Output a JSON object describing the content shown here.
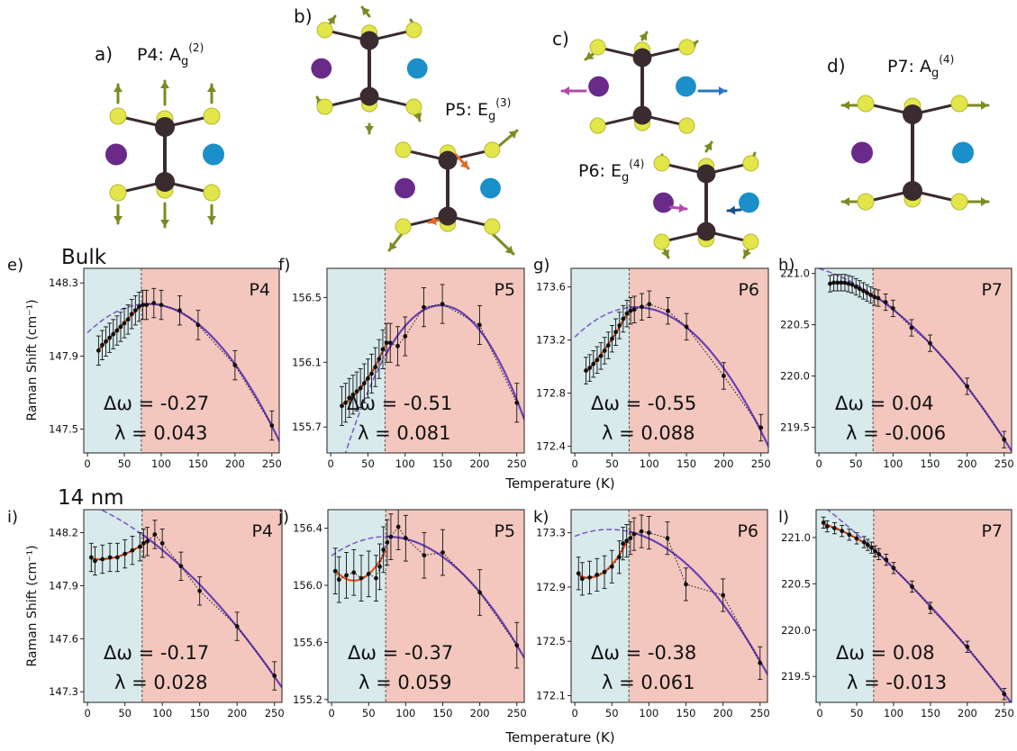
{
  "figure": {
    "mode_labels": [
      {
        "letter": "a)",
        "mode": "P4",
        "irrep": "A",
        "sub": "g",
        "sup": "(2)"
      },
      {
        "letter": "b)",
        "mode": "P5",
        "irrep": "E",
        "sub": "g",
        "sup": "(3)"
      },
      {
        "letter": "c)",
        "mode": "P6",
        "irrep": "E",
        "sub": "g",
        "sup": "(4)"
      },
      {
        "letter": "d)",
        "mode": "P7",
        "irrep": "A",
        "sub": "g",
        "sup": "(4)"
      }
    ],
    "row_labels": [
      "Bulk",
      "14 nm"
    ],
    "shared_xlabel": "Temperature (K)",
    "shared_ylabel": "Raman Shift (cm⁻¹)",
    "colors": {
      "lowT_region": "#d8eaec",
      "highT_region": "#f3c7be",
      "fit_lowT": "#f0501a",
      "fit_highT": "#6a3fb5",
      "extrapolation": "#7b55c9",
      "points": "#111111",
      "metal_atom": "#3a2b2e",
      "chalcogen_atom": "#e2e64a",
      "atom_purple": "#6a2a8a",
      "atom_blue": "#1b8fc9",
      "arrow_green": "#7d8a22",
      "arrow_orange": "#e06a2a"
    }
  },
  "chart_data": [
    {
      "panel": "e)",
      "type": "scatter",
      "mode": "P4",
      "sample": "Bulk",
      "xlabel": "",
      "ylabel": "Raman Shift (cm⁻¹)",
      "xlim": [
        -5,
        260
      ],
      "ylim": [
        147.37,
        148.38
      ],
      "xticks": [
        0,
        50,
        100,
        150,
        200,
        250
      ],
      "yticks": [
        "147.5",
        "147.9",
        "148.3"
      ],
      "transition_T": 73,
      "delta_omega": "Δω = -0.27",
      "lambda": "λ = 0.043",
      "x": [
        15,
        20,
        25,
        30,
        35,
        40,
        45,
        50,
        55,
        60,
        65,
        70,
        75,
        80,
        90,
        100,
        125,
        150,
        200,
        250
      ],
      "y": [
        147.93,
        147.96,
        147.98,
        148.0,
        148.02,
        148.04,
        148.06,
        148.08,
        148.1,
        148.13,
        148.15,
        148.17,
        148.18,
        148.18,
        148.19,
        148.18,
        148.15,
        148.07,
        147.85,
        147.52
      ],
      "err": 0.08
    },
    {
      "panel": "f)",
      "type": "scatter",
      "mode": "P5",
      "sample": "Bulk",
      "xlabel": "",
      "ylabel": "",
      "xlim": [
        -5,
        260
      ],
      "ylim": [
        155.54,
        156.68
      ],
      "xticks": [
        0,
        50,
        100,
        150,
        200,
        250
      ],
      "yticks": [
        "155.7",
        "156.1",
        "156.5"
      ],
      "transition_T": 73,
      "delta_omega": "Δω = -0.51",
      "lambda": "λ = 0.081",
      "x": [
        15,
        20,
        25,
        30,
        35,
        40,
        45,
        50,
        55,
        60,
        65,
        70,
        75,
        80,
        90,
        100,
        125,
        150,
        200,
        250
      ],
      "y": [
        155.83,
        155.85,
        155.88,
        155.9,
        155.92,
        155.94,
        155.97,
        156.0,
        156.03,
        156.07,
        156.12,
        156.18,
        156.22,
        156.22,
        156.2,
        156.26,
        156.44,
        156.46,
        156.33,
        155.85
      ],
      "err": 0.12
    },
    {
      "panel": "g)",
      "type": "scatter",
      "mode": "P6",
      "sample": "Bulk",
      "xlabel": "",
      "ylabel": "",
      "xlim": [
        -5,
        260
      ],
      "ylim": [
        172.35,
        173.74
      ],
      "xticks": [
        0,
        50,
        100,
        150,
        200,
        250
      ],
      "yticks": [
        "172.4",
        "172.8",
        "173.2",
        "173.6"
      ],
      "transition_T": 73,
      "delta_omega": "Δω = -0.55",
      "lambda": "λ = 0.088",
      "x": [
        15,
        20,
        25,
        30,
        35,
        40,
        45,
        50,
        55,
        60,
        65,
        70,
        75,
        80,
        90,
        100,
        125,
        150,
        200,
        250
      ],
      "y": [
        172.97,
        172.99,
        173.02,
        173.05,
        173.08,
        173.12,
        173.16,
        173.21,
        173.26,
        173.31,
        173.36,
        173.4,
        173.42,
        173.43,
        173.45,
        173.47,
        173.42,
        173.3,
        172.93,
        172.54
      ],
      "err": 0.1
    },
    {
      "panel": "h)",
      "type": "scatter",
      "mode": "P7",
      "sample": "Bulk",
      "xlabel": "",
      "ylabel": "",
      "xlim": [
        -5,
        260
      ],
      "ylim": [
        219.25,
        221.05
      ],
      "xticks": [
        0,
        50,
        100,
        150,
        200,
        250
      ],
      "yticks": [
        "219.5",
        "220.0",
        "220.5",
        "221.0"
      ],
      "transition_T": 73,
      "delta_omega": "Δω = 0.04",
      "lambda": "λ = -0.006",
      "x": [
        15,
        20,
        25,
        30,
        35,
        40,
        45,
        50,
        55,
        60,
        65,
        70,
        75,
        80,
        90,
        100,
        125,
        150,
        200,
        250
      ],
      "y": [
        220.9,
        220.91,
        220.91,
        220.91,
        220.91,
        220.9,
        220.89,
        220.87,
        220.85,
        220.83,
        220.81,
        220.79,
        220.77,
        220.76,
        220.72,
        220.66,
        220.47,
        220.32,
        219.9,
        219.38
      ],
      "err": 0.08
    },
    {
      "panel": "i)",
      "type": "scatter",
      "mode": "P4",
      "sample": "14 nm",
      "xlabel": "Temperature (K)",
      "ylabel": "Raman Shift (cm⁻¹)",
      "xlim": [
        -5,
        260
      ],
      "ylim": [
        147.24,
        148.33
      ],
      "xticks": [
        0,
        50,
        100,
        150,
        200,
        250
      ],
      "yticks": [
        "147.3",
        "147.6",
        "147.9",
        "148.2"
      ],
      "transition_T": 73,
      "delta_omega": "Δω = -0.17",
      "lambda": "λ = 0.028",
      "x": [
        5,
        10,
        20,
        30,
        40,
        50,
        60,
        70,
        75,
        80,
        90,
        100,
        125,
        150,
        200,
        250
      ],
      "y": [
        148.06,
        148.04,
        148.05,
        148.06,
        148.06,
        148.08,
        148.1,
        148.12,
        148.14,
        148.15,
        148.19,
        148.14,
        148.01,
        147.87,
        147.67,
        147.39
      ],
      "err": 0.08
    },
    {
      "panel": "j)",
      "type": "scatter",
      "mode": "P5",
      "sample": "14 nm",
      "xlabel": "Temperature (K)",
      "ylabel": "",
      "xlim": [
        -5,
        260
      ],
      "ylim": [
        155.18,
        156.53
      ],
      "xticks": [
        0,
        50,
        100,
        150,
        200,
        250
      ],
      "yticks": [
        "155.2",
        "155.6",
        "156.0",
        "156.4"
      ],
      "transition_T": 73,
      "delta_omega": "Δω = -0.37",
      "lambda": "λ = 0.059",
      "x": [
        5,
        10,
        20,
        30,
        40,
        50,
        60,
        65,
        70,
        75,
        80,
        90,
        100,
        125,
        150,
        200,
        250
      ],
      "y": [
        156.1,
        156.04,
        156.07,
        156.09,
        156.05,
        156.08,
        156.05,
        156.13,
        156.25,
        156.3,
        156.34,
        156.41,
        156.33,
        156.21,
        156.23,
        155.95,
        155.58
      ],
      "err": 0.16
    },
    {
      "panel": "k)",
      "type": "scatter",
      "mode": "P6",
      "sample": "14 nm",
      "xlabel": "Temperature (K)",
      "ylabel": "",
      "xlim": [
        -5,
        260
      ],
      "ylim": [
        172.05,
        173.47
      ],
      "xticks": [
        0,
        50,
        100,
        150,
        200,
        250
      ],
      "yticks": [
        "172.1",
        "172.5",
        "172.9",
        "173.3"
      ],
      "transition_T": 73,
      "delta_omega": "Δω = -0.38",
      "lambda": "λ = 0.061",
      "x": [
        5,
        10,
        20,
        30,
        40,
        50,
        60,
        65,
        70,
        75,
        80,
        90,
        100,
        125,
        150,
        200,
        250
      ],
      "y": [
        173.0,
        172.96,
        172.97,
        172.99,
        173.01,
        173.05,
        173.12,
        173.22,
        173.24,
        173.26,
        173.29,
        173.31,
        173.3,
        173.26,
        172.92,
        172.84,
        172.34
      ],
      "err": 0.12
    },
    {
      "panel": "l)",
      "type": "scatter",
      "mode": "P7",
      "sample": "14 nm",
      "xlabel": "Temperature (K)",
      "ylabel": "",
      "xlim": [
        -5,
        260
      ],
      "ylim": [
        219.22,
        221.3
      ],
      "xticks": [
        0,
        50,
        100,
        150,
        200,
        250
      ],
      "yticks": [
        "219.5",
        "220.0",
        "220.5",
        "221.0"
      ],
      "transition_T": 73,
      "delta_omega": "Δω = 0.08",
      "lambda": "λ = -0.013",
      "x": [
        5,
        10,
        20,
        30,
        40,
        50,
        60,
        65,
        70,
        75,
        80,
        90,
        100,
        125,
        150,
        200,
        250
      ],
      "y": [
        221.16,
        221.12,
        221.1,
        221.07,
        221.03,
        220.99,
        220.95,
        220.92,
        220.89,
        220.85,
        220.82,
        220.76,
        220.67,
        220.47,
        220.24,
        219.82,
        219.31
      ],
      "err": 0.06
    }
  ]
}
